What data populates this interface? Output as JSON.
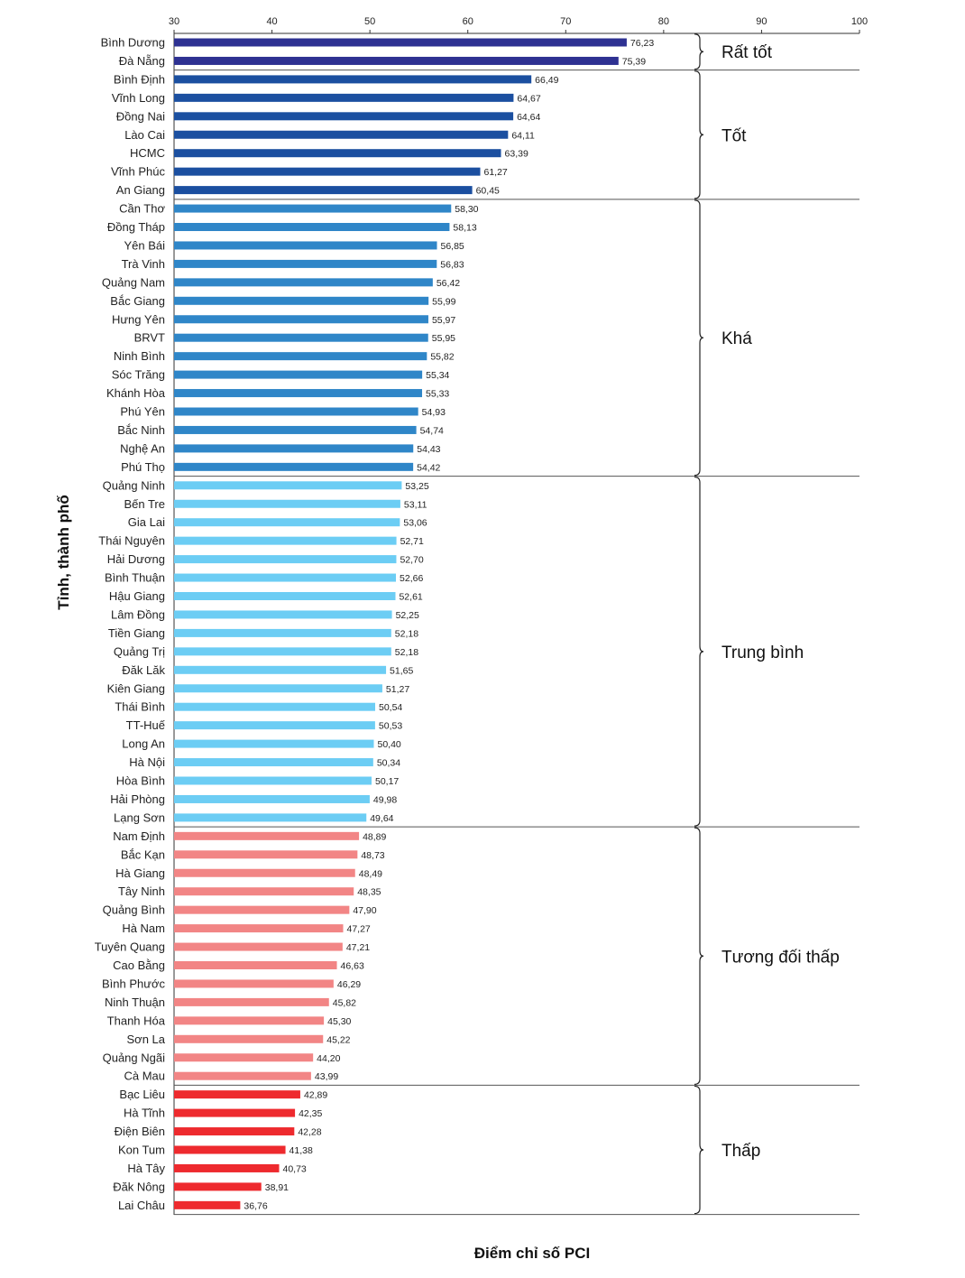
{
  "chart_data": {
    "type": "bar",
    "orientation": "horizontal",
    "xlabel": "Điểm chỉ số PCI",
    "ylabel": "Tỉnh, thành phố",
    "xlim": [
      30,
      100
    ],
    "xticks": [
      30,
      40,
      50,
      60,
      70,
      80,
      90,
      100
    ],
    "grid": false,
    "categories": [
      "Bình Dương",
      "Đà Nẵng",
      "Bình Định",
      "Vĩnh Long",
      "Đồng Nai",
      "Lào Cai",
      "HCMC",
      "Vĩnh Phúc",
      "An Giang",
      "Cần Thơ",
      "Đồng Tháp",
      "Yên Bái",
      "Trà Vinh",
      "Quảng Nam",
      "Bắc Giang",
      "Hưng Yên",
      "BRVT",
      "Ninh Bình",
      "Sóc Trăng",
      "Khánh Hòa",
      "Phú Yên",
      "Bắc Ninh",
      "Nghệ An",
      "Phú Thọ",
      "Quảng Ninh",
      "Bến Tre",
      "Gia Lai",
      "Thái Nguyên",
      "Hải Dương",
      "Bình Thuận",
      "Hậu Giang",
      "Lâm Đồng",
      "Tiền Giang",
      "Quảng Trị",
      "Đăk Lăk",
      "Kiên Giang",
      "Thái Bình",
      "TT-Huế",
      "Long An",
      "Hà Nội",
      "Hòa Bình",
      "Hải Phòng",
      "Lạng Sơn",
      "Nam Định",
      "Bắc Kạn",
      "Hà Giang",
      "Tây Ninh",
      "Quảng Bình",
      "Hà Nam",
      "Tuyên Quang",
      "Cao Bằng",
      "Bình Phước",
      "Ninh Thuận",
      "Thanh Hóa",
      "Sơn La",
      "Quảng Ngãi",
      "Cà Mau",
      "Bạc Liêu",
      "Hà Tĩnh",
      "Điện Biên",
      "Kon Tum",
      "Hà Tây",
      "Đăk Nông",
      "Lai Châu"
    ],
    "values": [
      76.23,
      75.39,
      66.49,
      64.67,
      64.64,
      64.11,
      63.39,
      61.27,
      60.45,
      58.3,
      58.13,
      56.85,
      56.83,
      56.42,
      55.99,
      55.97,
      55.95,
      55.82,
      55.34,
      55.33,
      54.93,
      54.74,
      54.43,
      54.42,
      53.25,
      53.11,
      53.06,
      52.71,
      52.7,
      52.66,
      52.61,
      52.25,
      52.18,
      52.18,
      51.65,
      51.27,
      50.54,
      50.53,
      50.4,
      50.34,
      50.17,
      49.98,
      49.64,
      48.89,
      48.73,
      48.49,
      48.35,
      47.9,
      47.27,
      47.21,
      46.63,
      46.29,
      45.82,
      45.3,
      45.22,
      44.2,
      43.99,
      42.89,
      42.35,
      42.28,
      41.38,
      40.73,
      38.91,
      36.76
    ],
    "value_labels": [
      "76,23",
      "75,39",
      "66,49",
      "64,67",
      "64,64",
      "64,11",
      "63,39",
      "61,27",
      "60,45",
      "58,30",
      "58,13",
      "56,85",
      "56,83",
      "56,42",
      "55,99",
      "55,97",
      "55,95",
      "55,82",
      "55,34",
      "55,33",
      "54,93",
      "54,74",
      "54,43",
      "54,42",
      "53,25",
      "53,11",
      "53,06",
      "52,71",
      "52,70",
      "52,66",
      "52,61",
      "52,25",
      "52,18",
      "52,18",
      "51,65",
      "51,27",
      "50,54",
      "50,53",
      "50,40",
      "50,34",
      "50,17",
      "49,98",
      "49,64",
      "48,89",
      "48,73",
      "48,49",
      "48,35",
      "47,90",
      "47,27",
      "47,21",
      "46,63",
      "46,29",
      "45,82",
      "45,30",
      "45,22",
      "44,20",
      "43,99",
      "42,89",
      "42,35",
      "42,28",
      "41,38",
      "40,73",
      "38,91",
      "36,76"
    ],
    "groups": [
      {
        "name": "Rất tốt",
        "count": 2,
        "color": "#2e3192"
      },
      {
        "name": "Tốt",
        "count": 7,
        "color": "#1b4fa0"
      },
      {
        "name": "Khá",
        "count": 15,
        "color": "#2f86c8"
      },
      {
        "name": "Trung bình",
        "count": 19,
        "color": "#6ccdf4"
      },
      {
        "name": "Tương đối thấp",
        "count": 14,
        "color": "#f28585"
      },
      {
        "name": "Thấp",
        "count": 7,
        "color": "#ee2a2e"
      }
    ]
  }
}
